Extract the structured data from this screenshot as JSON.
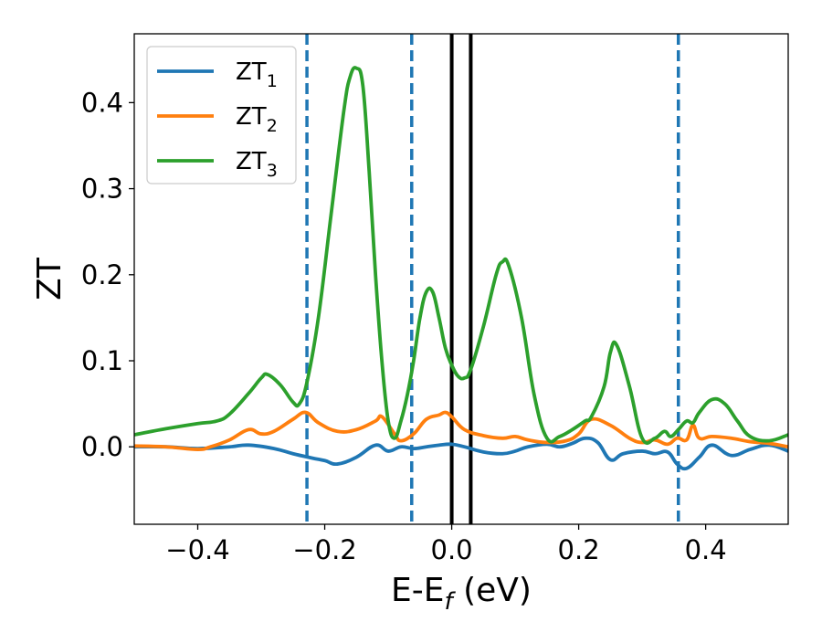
{
  "chart_data": {
    "type": "line",
    "title": "",
    "xlabel": "E-E",
    "xlabel_sub": "f",
    "xlabel_suffix": " (eV)",
    "ylabel": "ZT",
    "xlim": [
      -0.5,
      0.53
    ],
    "ylim": [
      -0.09,
      0.48
    ],
    "x_ticks": [
      -0.4,
      -0.2,
      0.0,
      0.2,
      0.4
    ],
    "x_tick_labels": [
      "−0.4",
      "−0.2",
      "0.0",
      "0.2",
      "0.4"
    ],
    "y_ticks": [
      0.0,
      0.1,
      0.2,
      0.3,
      0.4
    ],
    "y_tick_labels": [
      "0.0",
      "0.1",
      "0.2",
      "0.3",
      "0.4"
    ],
    "grid": false,
    "legend_position": "top-left",
    "vertical_lines": [
      {
        "x": -0.228,
        "style": "dashed",
        "color": "#1f77b4"
      },
      {
        "x": -0.063,
        "style": "dashed",
        "color": "#1f77b4"
      },
      {
        "x": 0.357,
        "style": "dashed",
        "color": "#1f77b4"
      },
      {
        "x": 0.0,
        "style": "solid",
        "color": "#000000"
      },
      {
        "x": 0.03,
        "style": "solid",
        "color": "#000000"
      }
    ],
    "series": [
      {
        "name": "ZT",
        "subscript": "1",
        "color": "#1f77b4",
        "x": [
          -0.5,
          -0.45,
          -0.4,
          -0.35,
          -0.32,
          -0.28,
          -0.25,
          -0.22,
          -0.2,
          -0.18,
          -0.15,
          -0.12,
          -0.1,
          -0.08,
          -0.06,
          -0.04,
          -0.02,
          0.0,
          0.02,
          0.05,
          0.08,
          0.1,
          0.12,
          0.15,
          0.17,
          0.19,
          0.21,
          0.23,
          0.25,
          0.27,
          0.3,
          0.32,
          0.34,
          0.355,
          0.37,
          0.39,
          0.41,
          0.44,
          0.47,
          0.5,
          0.53
        ],
        "y": [
          0.0,
          0.0,
          -0.002,
          0.0,
          0.002,
          -0.002,
          -0.008,
          -0.013,
          -0.016,
          -0.02,
          -0.012,
          0.002,
          -0.005,
          0.0,
          -0.002,
          0.0,
          0.002,
          0.003,
          0.0,
          -0.006,
          -0.008,
          -0.005,
          0.0,
          0.003,
          0.0,
          0.004,
          0.01,
          0.005,
          -0.015,
          -0.008,
          -0.005,
          -0.008,
          -0.006,
          -0.02,
          -0.025,
          -0.012,
          0.002,
          -0.01,
          -0.003,
          0.002,
          -0.005
        ]
      },
      {
        "name": "ZT",
        "subscript": "2",
        "color": "#ff7f0e",
        "x": [
          -0.5,
          -0.45,
          -0.4,
          -0.38,
          -0.35,
          -0.32,
          -0.3,
          -0.28,
          -0.25,
          -0.23,
          -0.21,
          -0.18,
          -0.15,
          -0.12,
          -0.11,
          -0.09,
          -0.08,
          -0.06,
          -0.04,
          -0.02,
          -0.01,
          0.0,
          0.02,
          0.05,
          0.08,
          0.1,
          0.12,
          0.15,
          0.18,
          0.2,
          0.22,
          0.25,
          0.28,
          0.3,
          0.32,
          0.34,
          0.355,
          0.37,
          0.38,
          0.39,
          0.41,
          0.44,
          0.47,
          0.5,
          0.53
        ],
        "y": [
          0.001,
          0.0,
          -0.003,
          0.0,
          0.008,
          0.02,
          0.015,
          0.018,
          0.032,
          0.04,
          0.028,
          0.018,
          0.02,
          0.03,
          0.035,
          0.015,
          0.007,
          0.015,
          0.032,
          0.037,
          0.04,
          0.035,
          0.02,
          0.013,
          0.01,
          0.012,
          0.008,
          0.005,
          0.007,
          0.015,
          0.032,
          0.025,
          0.01,
          0.005,
          0.008,
          0.003,
          0.01,
          0.008,
          0.025,
          0.01,
          0.012,
          0.01,
          0.006,
          0.004,
          0.0
        ]
      },
      {
        "name": "ZT",
        "subscript": "3",
        "color": "#2ca02c",
        "x": [
          -0.5,
          -0.45,
          -0.4,
          -0.37,
          -0.35,
          -0.32,
          -0.3,
          -0.29,
          -0.27,
          -0.25,
          -0.24,
          -0.228,
          -0.21,
          -0.19,
          -0.17,
          -0.16,
          -0.15,
          -0.14,
          -0.13,
          -0.12,
          -0.11,
          -0.1,
          -0.09,
          -0.08,
          -0.07,
          -0.06,
          -0.05,
          -0.04,
          -0.03,
          -0.02,
          -0.01,
          0.0,
          0.01,
          0.02,
          0.03,
          0.05,
          0.07,
          0.08,
          0.09,
          0.11,
          0.13,
          0.15,
          0.17,
          0.19,
          0.21,
          0.22,
          0.24,
          0.25,
          0.26,
          0.28,
          0.3,
          0.32,
          0.335,
          0.345,
          0.357,
          0.37,
          0.38,
          0.39,
          0.41,
          0.43,
          0.45,
          0.47,
          0.5,
          0.53
        ],
        "y": [
          0.014,
          0.021,
          0.027,
          0.03,
          0.038,
          0.062,
          0.08,
          0.084,
          0.072,
          0.052,
          0.05,
          0.075,
          0.15,
          0.27,
          0.39,
          0.43,
          0.44,
          0.42,
          0.32,
          0.2,
          0.1,
          0.03,
          0.01,
          0.03,
          0.06,
          0.1,
          0.15,
          0.18,
          0.18,
          0.15,
          0.115,
          0.095,
          0.082,
          0.08,
          0.09,
          0.14,
          0.2,
          0.215,
          0.21,
          0.15,
          0.06,
          0.01,
          0.012,
          0.02,
          0.03,
          0.035,
          0.07,
          0.11,
          0.118,
          0.07,
          0.01,
          0.01,
          0.018,
          0.012,
          0.02,
          0.03,
          0.028,
          0.04,
          0.055,
          0.05,
          0.03,
          0.012,
          0.007,
          0.014
        ]
      }
    ]
  }
}
